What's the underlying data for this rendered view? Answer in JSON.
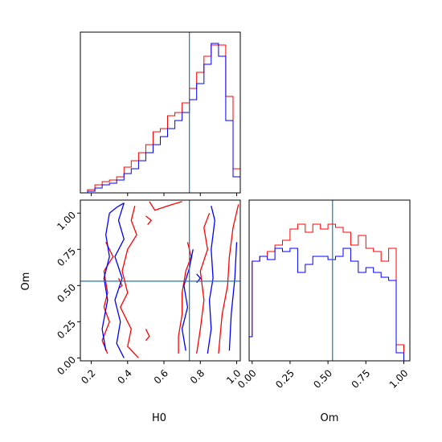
{
  "chart_data": [
    {
      "type": "histogram",
      "panel": "top-left",
      "variable": "H0",
      "xlim": [
        0.14,
        1.02
      ],
      "ylim": [
        0,
        1
      ],
      "truth": 0.74,
      "bin_edges": [
        0.14,
        0.18,
        0.22,
        0.26,
        0.3,
        0.34,
        0.38,
        0.42,
        0.46,
        0.5,
        0.54,
        0.58,
        0.62,
        0.66,
        0.7,
        0.74,
        0.78,
        0.82,
        0.86,
        0.9,
        0.94,
        0.98,
        1.02
      ],
      "series": [
        {
          "color": "#ff0000",
          "values": [
            0.0,
            0.02,
            0.05,
            0.07,
            0.08,
            0.1,
            0.16,
            0.2,
            0.25,
            0.3,
            0.38,
            0.4,
            0.48,
            0.5,
            0.56,
            0.65,
            0.75,
            0.85,
            0.92,
            0.92,
            0.6,
            0.15
          ]
        },
        {
          "color": "#0000ff",
          "values": [
            0.0,
            0.01,
            0.03,
            0.05,
            0.06,
            0.08,
            0.12,
            0.15,
            0.2,
            0.25,
            0.3,
            0.35,
            0.4,
            0.45,
            0.5,
            0.58,
            0.68,
            0.8,
            0.93,
            0.85,
            0.45,
            0.1
          ]
        }
      ]
    },
    {
      "type": "contour",
      "panel": "bottom-left",
      "x_variable": "H0",
      "y_variable": "Om",
      "xlim": [
        0.14,
        1.02
      ],
      "ylim": [
        -0.02,
        1.09
      ],
      "x_ticks": [
        "0.2",
        "0.4",
        "0.6",
        "0.8",
        "1.0"
      ],
      "y_ticks": [
        "0.00",
        "0.25",
        "0.50",
        "0.75",
        "1.00"
      ],
      "xlabel": "H0",
      "ylabel": "Om",
      "truth": [
        0.74,
        0.53
      ],
      "series": [
        {
          "color": "#ff0000",
          "curves": [
            [
              [
                0.44,
                1.05
              ],
              [
                0.42,
                0.95
              ],
              [
                0.45,
                0.85
              ],
              [
                0.4,
                0.75
              ],
              [
                0.37,
                0.6
              ],
              [
                0.4,
                0.45
              ],
              [
                0.36,
                0.35
              ],
              [
                0.42,
                0.2
              ],
              [
                0.4,
                0.08
              ],
              [
                0.46,
                0.0
              ]
            ],
            [
              [
                0.28,
                0.8
              ],
              [
                0.32,
                0.7
              ],
              [
                0.27,
                0.6
              ],
              [
                0.29,
                0.45
              ],
              [
                0.27,
                0.35
              ],
              [
                0.3,
                0.25
              ],
              [
                0.26,
                0.12
              ],
              [
                0.29,
                0.03
              ]
            ],
            [
              [
                0.52,
                1.08
              ],
              [
                0.55,
                1.02
              ],
              [
                0.62,
                1.05
              ],
              [
                0.7,
                1.08
              ]
            ],
            [
              [
                0.68,
                0.03
              ],
              [
                0.68,
                0.15
              ],
              [
                0.7,
                0.3
              ],
              [
                0.7,
                0.45
              ],
              [
                0.72,
                0.6
              ],
              [
                0.75,
                0.7
              ],
              [
                0.73,
                0.8
              ]
            ],
            [
              [
                0.78,
                0.03
              ],
              [
                0.8,
                0.2
              ],
              [
                0.82,
                0.4
              ],
              [
                0.8,
                0.6
              ],
              [
                0.84,
                0.75
              ],
              [
                0.82,
                0.9
              ],
              [
                0.85,
                1.0
              ]
            ],
            [
              [
                0.9,
                0.03
              ],
              [
                0.92,
                0.3
              ],
              [
                0.95,
                0.5
              ],
              [
                0.96,
                0.7
              ],
              [
                0.98,
                0.9
              ],
              [
                1.01,
                1.06
              ]
            ],
            [
              [
                0.5,
                0.98
              ],
              [
                0.53,
                0.95
              ],
              [
                0.51,
                0.92
              ]
            ],
            [
              [
                0.35,
                0.55
              ],
              [
                0.37,
                0.5
              ],
              [
                0.35,
                0.48
              ]
            ],
            [
              [
                0.5,
                0.2
              ],
              [
                0.52,
                0.15
              ],
              [
                0.5,
                0.12
              ]
            ]
          ]
        },
        {
          "color": "#0000ff",
          "curves": [
            [
              [
                0.38,
                1.07
              ],
              [
                0.35,
                0.95
              ],
              [
                0.38,
                0.82
              ],
              [
                0.33,
                0.7
              ],
              [
                0.37,
                0.55
              ],
              [
                0.33,
                0.4
              ],
              [
                0.36,
                0.25
              ],
              [
                0.34,
                0.1
              ],
              [
                0.38,
                0.0
              ]
            ],
            [
              [
                0.3,
                1.0
              ],
              [
                0.28,
                0.85
              ],
              [
                0.3,
                0.7
              ],
              [
                0.27,
                0.55
              ],
              [
                0.29,
                0.4
              ],
              [
                0.26,
                0.2
              ],
              [
                0.28,
                0.05
              ]
            ],
            [
              [
                0.3,
                1.0
              ],
              [
                0.34,
                1.04
              ],
              [
                0.38,
                1.07
              ]
            ],
            [
              [
                0.72,
                0.05
              ],
              [
                0.7,
                0.2
              ],
              [
                0.73,
                0.35
              ],
              [
                0.71,
                0.5
              ],
              [
                0.74,
                0.62
              ],
              [
                0.76,
                0.75
              ]
            ],
            [
              [
                0.84,
                0.03
              ],
              [
                0.86,
                0.2
              ],
              [
                0.85,
                0.4
              ],
              [
                0.87,
                0.55
              ],
              [
                0.86,
                0.75
              ],
              [
                0.88,
                0.95
              ],
              [
                0.86,
                1.05
              ]
            ],
            [
              [
                0.96,
                0.05
              ],
              [
                0.97,
                0.3
              ],
              [
                0.99,
                0.55
              ],
              [
                1.0,
                0.8
              ]
            ],
            [
              [
                0.78,
                0.58
              ],
              [
                0.8,
                0.55
              ],
              [
                0.78,
                0.52
              ]
            ]
          ]
        }
      ]
    },
    {
      "type": "histogram",
      "panel": "bottom-right",
      "variable": "Om",
      "xlim": [
        -0.02,
        1.04
      ],
      "ylim": [
        0,
        1
      ],
      "truth": 0.53,
      "x_ticks": [
        "0.00",
        "0.25",
        "0.50",
        "0.75",
        "1.00"
      ],
      "xlabel": "Om",
      "bin_edges": [
        -0.02,
        0.0,
        0.05,
        0.1,
        0.15,
        0.2,
        0.25,
        0.3,
        0.35,
        0.4,
        0.45,
        0.5,
        0.55,
        0.6,
        0.65,
        0.7,
        0.75,
        0.8,
        0.85,
        0.9,
        0.95,
        1.0,
        1.04
      ],
      "series": [
        {
          "color": "#ff0000",
          "values": [
            0.15,
            0.62,
            0.65,
            0.68,
            0.72,
            0.75,
            0.82,
            0.85,
            0.8,
            0.85,
            0.82,
            0.85,
            0.83,
            0.8,
            0.72,
            0.78,
            0.7,
            0.68,
            0.62,
            0.7,
            0.1,
            0.0
          ]
        },
        {
          "color": "#0000ff",
          "values": [
            0.15,
            0.62,
            0.65,
            0.63,
            0.7,
            0.68,
            0.7,
            0.55,
            0.6,
            0.65,
            0.65,
            0.63,
            0.65,
            0.7,
            0.62,
            0.55,
            0.58,
            0.55,
            0.52,
            0.5,
            0.05,
            0.0
          ]
        }
      ]
    }
  ]
}
